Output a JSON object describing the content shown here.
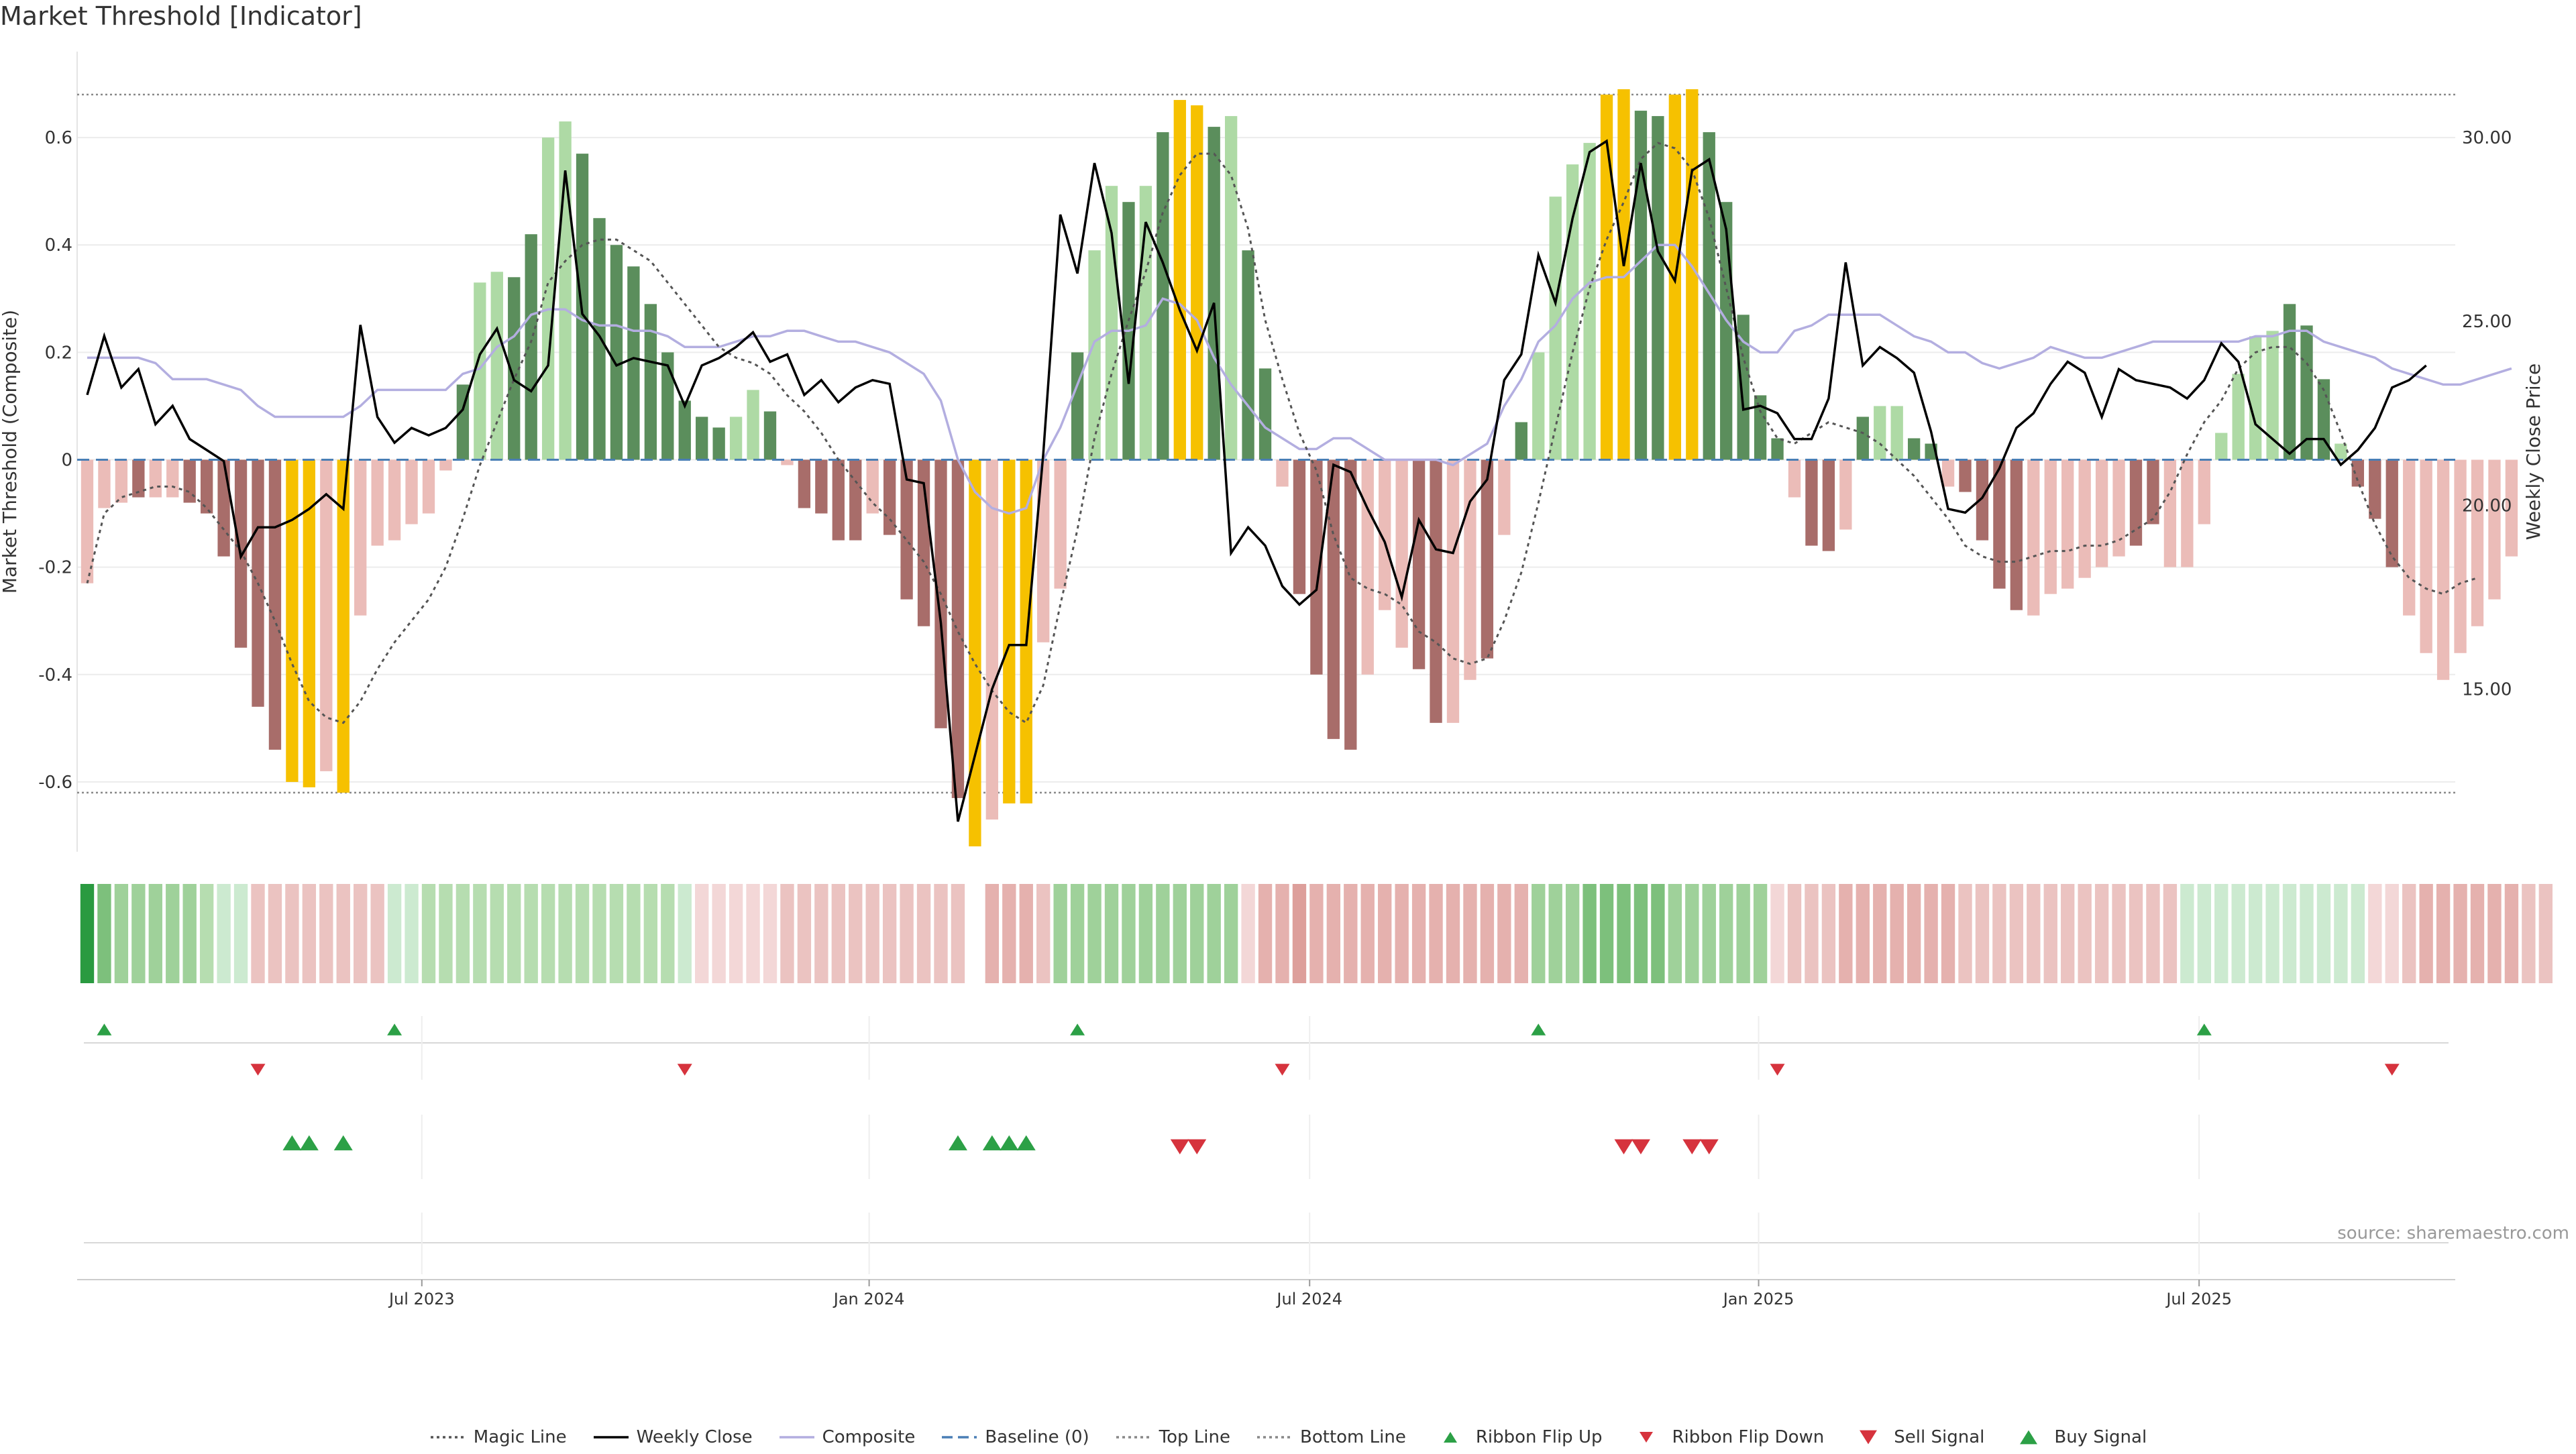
{
  "title": "Market Threshold [Indicator]",
  "source": "source: sharemaestro.com",
  "colors": {
    "magic": "#555555",
    "close": "#000000",
    "composite": "#b3aee0",
    "baseline": "#4a7fb5",
    "threshold": "#888888",
    "bar_dark_green": "#5b8e5c",
    "bar_light_green": "#aedaa5",
    "bar_dark_red": "#a86d6a",
    "bar_light_red": "#ebbcb8",
    "bar_gold": "#f6c100",
    "buy": "#2ca046",
    "sell": "#d6333d"
  },
  "legend": [
    {
      "label": "Magic Line",
      "key": "magic",
      "style": "dotted"
    },
    {
      "label": "Weekly Close",
      "key": "close",
      "style": "solid"
    },
    {
      "label": "Composite",
      "key": "composite",
      "style": "solid"
    },
    {
      "label": "Baseline (0)",
      "key": "baseline",
      "style": "dashed"
    },
    {
      "label": "Top Line",
      "key": "threshold",
      "style": "dotted"
    },
    {
      "label": "Bottom Line",
      "key": "threshold",
      "style": "dotted"
    },
    {
      "label": "Ribbon Flip Up",
      "key": "buy",
      "style": "tri-up"
    },
    {
      "label": "Ribbon Flip Down",
      "key": "sell",
      "style": "tri-down"
    },
    {
      "label": "Sell Signal",
      "key": "sell",
      "style": "tri-down-big"
    },
    {
      "label": "Buy Signal",
      "key": "buy",
      "style": "tri-up-big"
    }
  ],
  "chart_data": {
    "type": "bar",
    "title": "Market Threshold [Indicator]",
    "xlabel": "",
    "ylabel": "Market Threshold (Composite)",
    "y2label": "Weekly Close Price",
    "ylim": [
      -0.73,
      0.76
    ],
    "y2lim": [
      10.58,
      32.33
    ],
    "yticks": [
      -0.6,
      -0.4,
      -0.2,
      0,
      0.2,
      0.4,
      0.6
    ],
    "ytick_labels": [
      "-0.6",
      "-0.4",
      "-0.2",
      "0",
      "0.2",
      "0.4",
      "0.6"
    ],
    "y2ticks": [
      15,
      20,
      25,
      30
    ],
    "y2tick_labels": [
      "15.00",
      "20.00",
      "25.00",
      "30.00"
    ],
    "x_ticks": [
      {
        "label": "Jul 2023",
        "week": 19.6
      },
      {
        "label": "Jan 2024",
        "week": 45.8
      },
      {
        "label": "Jul 2024",
        "week": 71.6
      },
      {
        "label": "Jan 2025",
        "week": 97.9
      },
      {
        "label": "Jul 2025",
        "week": 123.7
      }
    ],
    "top_line": 0.68,
    "bottom_line": -0.62,
    "baseline": 0,
    "bars": [
      -0.23,
      -0.09,
      -0.08,
      -0.07,
      -0.07,
      -0.07,
      -0.08,
      -0.1,
      -0.18,
      -0.35,
      -0.46,
      -0.54,
      -0.6,
      -0.61,
      -0.58,
      -0.62,
      -0.29,
      -0.16,
      -0.15,
      -0.12,
      -0.1,
      -0.02,
      0.14,
      0.33,
      0.35,
      0.34,
      0.42,
      0.6,
      0.63,
      0.57,
      0.45,
      0.4,
      0.36,
      0.29,
      0.2,
      0.11,
      0.08,
      0.06,
      0.08,
      0.13,
      0.09,
      -0.01,
      -0.09,
      -0.1,
      -0.15,
      -0.15,
      -0.1,
      -0.14,
      -0.26,
      -0.31,
      -0.5,
      -0.63,
      -0.72,
      -0.67,
      -0.64,
      -0.64,
      -0.34,
      -0.24,
      0.2,
      0.39,
      0.51,
      0.48,
      0.51,
      0.61,
      0.67,
      0.66,
      0.62,
      0.64,
      0.39,
      0.17,
      -0.05,
      -0.25,
      -0.4,
      -0.52,
      -0.54,
      -0.4,
      -0.28,
      -0.35,
      -0.39,
      -0.49,
      -0.49,
      -0.41,
      -0.37,
      -0.14,
      0.07,
      0.2,
      0.49,
      0.55,
      0.59,
      0.68,
      0.69,
      0.65,
      0.64,
      0.68,
      0.69,
      0.61,
      0.48,
      0.27,
      0.12,
      0.04,
      -0.07,
      -0.16,
      -0.17,
      -0.13,
      0.08,
      0.1,
      0.1,
      0.04,
      0.03,
      -0.05,
      -0.06,
      -0.15,
      -0.24,
      -0.28,
      -0.29,
      -0.25,
      -0.24,
      -0.22,
      -0.2,
      -0.18,
      -0.16,
      -0.12,
      -0.2,
      -0.2,
      -0.12,
      0.05,
      0.16,
      0.23,
      0.24,
      0.29,
      0.25,
      0.15,
      0.03,
      -0.05,
      -0.11,
      -0.2,
      -0.29,
      -0.36,
      -0.41,
      -0.36,
      -0.31,
      -0.26,
      -0.18
    ],
    "bar_tone": [
      2,
      2,
      2,
      1,
      2,
      2,
      1,
      1,
      1,
      1,
      1,
      1,
      3,
      3,
      2,
      3,
      2,
      2,
      2,
      2,
      2,
      2,
      0,
      1,
      1,
      0,
      0,
      1,
      1,
      0,
      0,
      0,
      0,
      0,
      0,
      0,
      0,
      0,
      1,
      1,
      0,
      0,
      1,
      1,
      1,
      1,
      2,
      1,
      1,
      1,
      1,
      1,
      3,
      2,
      3,
      3,
      2,
      2,
      0,
      1,
      1,
      0,
      1,
      0,
      3,
      3,
      0,
      1,
      0,
      0,
      2,
      1,
      1,
      1,
      1,
      2,
      2,
      2,
      1,
      1,
      2,
      2,
      1,
      2,
      0,
      1,
      1,
      1,
      1,
      3,
      3,
      0,
      0,
      3,
      3,
      0,
      0,
      0,
      0,
      0,
      2,
      1,
      1,
      2,
      0,
      1,
      1,
      0,
      0,
      2,
      1,
      1,
      1,
      1,
      2,
      2,
      2,
      2,
      2,
      2,
      1,
      1,
      2,
      2,
      0,
      1,
      1,
      1,
      1,
      0,
      0,
      0,
      2,
      1,
      1,
      1,
      2,
      2,
      2,
      2
    ],
    "composite": [
      0.19,
      0.19,
      0.19,
      0.19,
      0.18,
      0.15,
      0.15,
      0.15,
      0.14,
      0.13,
      0.1,
      0.08,
      0.08,
      0.08,
      0.08,
      0.08,
      0.1,
      0.13,
      0.13,
      0.13,
      0.13,
      0.13,
      0.16,
      0.17,
      0.21,
      0.23,
      0.27,
      0.28,
      0.28,
      0.26,
      0.25,
      0.25,
      0.24,
      0.24,
      0.23,
      0.21,
      0.21,
      0.21,
      0.22,
      0.23,
      0.23,
      0.24,
      0.24,
      0.23,
      0.22,
      0.22,
      0.21,
      0.2,
      0.18,
      0.16,
      0.11,
      0.0,
      -0.06,
      -0.09,
      -0.1,
      -0.09,
      0.0,
      0.06,
      0.14,
      0.22,
      0.24,
      0.24,
      0.25,
      0.3,
      0.29,
      0.26,
      0.19,
      0.14,
      0.1,
      0.06,
      0.04,
      0.02,
      0.02,
      0.04,
      0.04,
      0.02,
      0.0,
      0.0,
      0.0,
      0.0,
      -0.01,
      0.01,
      0.03,
      0.1,
      0.15,
      0.22,
      0.25,
      0.3,
      0.33,
      0.34,
      0.34,
      0.37,
      0.4,
      0.4,
      0.36,
      0.31,
      0.26,
      0.22,
      0.2,
      0.2,
      0.24,
      0.25,
      0.27,
      0.27,
      0.27,
      0.27,
      0.25,
      0.23,
      0.22,
      0.2,
      0.2,
      0.18,
      0.17,
      0.18,
      0.19,
      0.21,
      0.2,
      0.19,
      0.19,
      0.2,
      0.21,
      0.22,
      0.22,
      0.22,
      0.22,
      0.22,
      0.22,
      0.23,
      0.23,
      0.24,
      0.24,
      0.22,
      0.21,
      0.2,
      0.19,
      0.17,
      0.16,
      0.15,
      0.14,
      0.14,
      0.15,
      0.16,
      0.17
    ],
    "magic": [
      -0.23,
      -0.1,
      -0.07,
      -0.06,
      -0.05,
      -0.05,
      -0.06,
      -0.09,
      -0.13,
      -0.17,
      -0.23,
      -0.3,
      -0.38,
      -0.45,
      -0.48,
      -0.49,
      -0.45,
      -0.39,
      -0.34,
      -0.3,
      -0.26,
      -0.2,
      -0.11,
      -0.01,
      0.07,
      0.15,
      0.22,
      0.33,
      0.37,
      0.4,
      0.41,
      0.41,
      0.39,
      0.37,
      0.33,
      0.29,
      0.25,
      0.21,
      0.19,
      0.18,
      0.16,
      0.12,
      0.09,
      0.05,
      0.0,
      -0.04,
      -0.08,
      -0.11,
      -0.15,
      -0.19,
      -0.25,
      -0.32,
      -0.38,
      -0.43,
      -0.47,
      -0.49,
      -0.42,
      -0.27,
      -0.13,
      0.04,
      0.16,
      0.26,
      0.35,
      0.46,
      0.53,
      0.57,
      0.57,
      0.53,
      0.43,
      0.26,
      0.15,
      0.05,
      -0.02,
      -0.14,
      -0.22,
      -0.24,
      -0.25,
      -0.27,
      -0.32,
      -0.34,
      -0.37,
      -0.38,
      -0.37,
      -0.3,
      -0.21,
      -0.08,
      0.06,
      0.2,
      0.32,
      0.41,
      0.48,
      0.56,
      0.59,
      0.58,
      0.54,
      0.45,
      0.32,
      0.19,
      0.09,
      0.04,
      0.03,
      0.05,
      0.07,
      0.06,
      0.05,
      0.03,
      0.0,
      -0.03,
      -0.07,
      -0.11,
      -0.16,
      -0.18,
      -0.19,
      -0.19,
      -0.18,
      -0.17,
      -0.17,
      -0.16,
      -0.16,
      -0.15,
      -0.13,
      -0.11,
      -0.06,
      0.01,
      0.07,
      0.11,
      0.17,
      0.2,
      0.21,
      0.21,
      0.18,
      0.13,
      0.05,
      -0.04,
      -0.12,
      -0.18,
      -0.22,
      -0.24,
      -0.25,
      -0.23,
      -0.22
    ],
    "weekly_close": [
      23.0,
      24.6,
      23.2,
      23.7,
      22.2,
      22.7,
      21.8,
      21.5,
      21.2,
      18.6,
      19.4,
      19.4,
      19.6,
      19.9,
      20.3,
      19.9,
      24.9,
      22.4,
      21.7,
      22.1,
      21.9,
      22.1,
      22.6,
      24.1,
      24.8,
      23.4,
      23.1,
      23.8,
      29.1,
      25.2,
      24.6,
      23.8,
      24.0,
      23.9,
      23.8,
      22.7,
      23.8,
      24.0,
      24.3,
      24.7,
      23.9,
      24.1,
      23.0,
      23.4,
      22.8,
      23.2,
      23.4,
      23.3,
      20.7,
      20.6,
      16.8,
      11.4,
      13.2,
      15.0,
      16.2,
      16.2,
      21.4,
      27.9,
      26.3,
      29.3,
      27.4,
      23.3,
      27.7,
      26.6,
      25.3,
      24.2,
      25.5,
      18.7,
      19.4,
      18.9,
      17.8,
      17.3,
      17.7,
      21.1,
      20.9,
      19.9,
      19.0,
      17.5,
      19.6,
      18.8,
      18.7,
      20.1,
      20.7,
      23.4,
      24.1,
      26.8,
      25.5,
      27.8,
      29.6,
      29.9,
      26.5,
      29.3,
      26.9,
      26.1,
      29.1,
      29.4,
      27.5,
      22.6,
      22.7,
      22.5,
      21.8,
      21.8,
      22.9,
      26.6,
      23.8,
      24.3,
      24.0,
      23.6,
      22.0,
      19.9,
      19.8,
      20.2,
      21.0,
      22.1,
      22.5,
      23.3,
      23.9,
      23.6,
      22.4,
      23.7,
      23.4,
      23.3,
      23.2,
      22.9,
      23.4,
      24.4,
      23.9,
      22.2,
      21.8,
      21.4,
      21.8,
      21.8,
      21.1,
      21.5,
      22.1,
      23.2,
      23.4,
      23.8
    ],
    "ribbon": [
      7,
      4,
      3,
      3,
      3,
      3,
      3,
      2,
      1,
      1,
      -2,
      -2,
      -2,
      -2,
      -2,
      -2,
      -2,
      -2,
      1,
      1,
      2,
      2,
      2,
      2,
      2,
      2,
      2,
      2,
      2,
      2,
      2,
      2,
      2,
      2,
      2,
      1,
      -1,
      -1,
      -1,
      -1,
      -1,
      -2,
      -2,
      -2,
      -2,
      -2,
      -2,
      -2,
      -2,
      -2,
      -2,
      -2,
      null,
      -3,
      -3,
      -3,
      -2,
      3,
      3,
      3,
      3,
      3,
      3,
      3,
      3,
      3,
      3,
      3,
      -1,
      -3,
      -3,
      -4,
      -3,
      -3,
      -3,
      -3,
      -3,
      -3,
      -3,
      -3,
      -3,
      -3,
      -3,
      -3,
      -3,
      3,
      3,
      3,
      4,
      4,
      4,
      4,
      4,
      3,
      3,
      3,
      3,
      3,
      3,
      -1,
      -2,
      -2,
      -2,
      -3,
      -3,
      -3,
      -3,
      -3,
      -3,
      -3,
      -2,
      -2,
      -2,
      -2,
      -2,
      -2,
      -2,
      -2,
      -2,
      -2,
      -2,
      -2,
      -2,
      1,
      1,
      1,
      1,
      1,
      1,
      1,
      1,
      1,
      1,
      1,
      -1,
      -1,
      -2,
      -3,
      -3,
      -3,
      -3,
      -3,
      -3,
      -2,
      -2
    ],
    "ribbon_flip_up": [
      1,
      18,
      58,
      85,
      124
    ],
    "ribbon_flip_down": [
      10,
      35,
      70,
      99,
      135
    ],
    "buy_signals": [
      12,
      13,
      15,
      51,
      53,
      54,
      55
    ],
    "sell_signals": [
      64,
      65,
      90,
      91,
      94,
      95
    ]
  }
}
